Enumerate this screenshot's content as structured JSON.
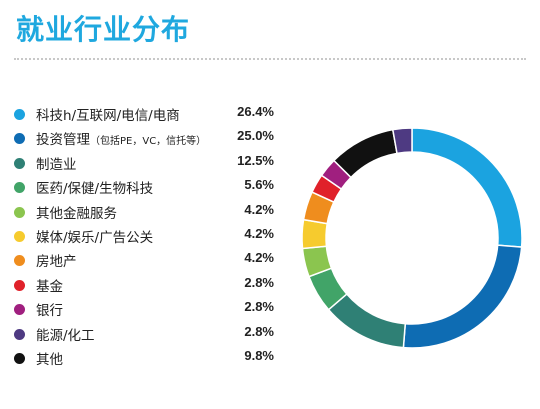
{
  "title": "就业行业分布",
  "chart_data": {
    "type": "pie",
    "subtype": "donut",
    "title": "就业行业分布",
    "categories": [
      "科技h/互联网/电信/电商",
      "投资管理",
      "制造业",
      "医药/保健/生物科技",
      "其他金融服务",
      "媒体/娱乐/广告公关",
      "房地产",
      "基金",
      "银行",
      "能源/化工",
      "其他"
    ],
    "label_notes": [
      "",
      "（包括PE，VC，信托等）",
      "",
      "",
      "",
      "",
      "",
      "",
      "",
      "",
      ""
    ],
    "values": [
      26.4,
      25.0,
      12.5,
      5.6,
      4.2,
      4.2,
      4.2,
      2.8,
      2.8,
      2.8,
      9.8
    ],
    "value_labels": [
      "26.4%",
      "25.0%",
      "12.5%",
      "5.6%",
      "4.2%",
      "4.2%",
      "4.2%",
      "2.8%",
      "2.8%",
      "2.8%",
      "9.8%"
    ],
    "colors": [
      "#1ba3e0",
      "#0e6cb3",
      "#2f8075",
      "#41a468",
      "#8bc54f",
      "#f6cb2e",
      "#ef8d1e",
      "#e0212a",
      "#a01f7f",
      "#4e3a82",
      "#111111"
    ],
    "legend_position": "left",
    "start": "top",
    "direction": "clockwise",
    "order": [
      0,
      1,
      2,
      3,
      4,
      5,
      6,
      7,
      8,
      10,
      9
    ]
  }
}
